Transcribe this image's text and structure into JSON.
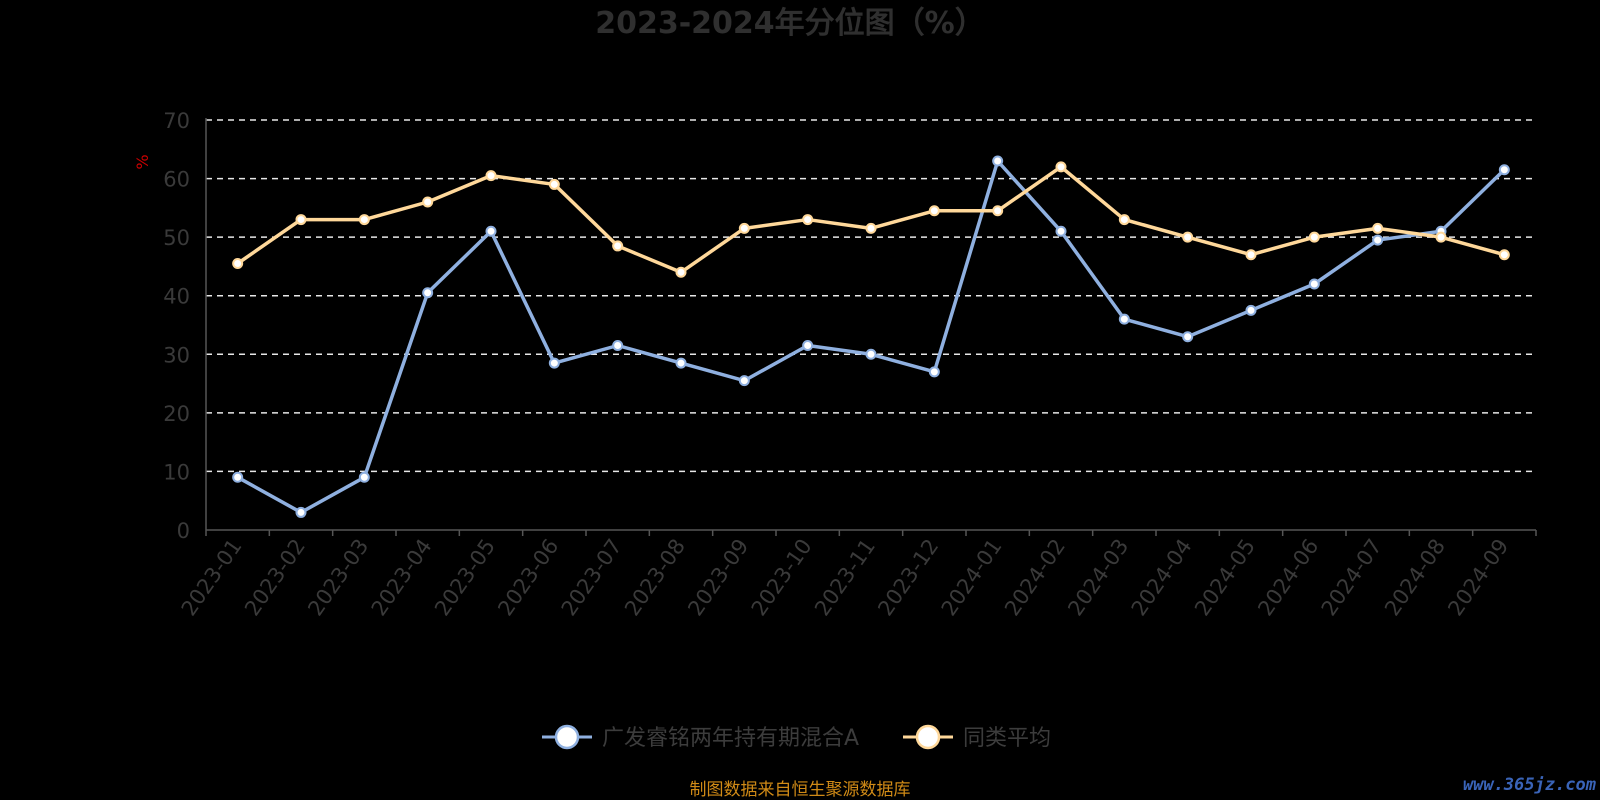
{
  "chart_data": {
    "type": "line",
    "title": "2023-2024年分位图（%）",
    "ylabel": "%",
    "ylim": [
      0,
      70
    ],
    "yticks": [
      0,
      10,
      20,
      30,
      40,
      50,
      60,
      70
    ],
    "grid": true,
    "legend_position": "bottom-center",
    "categories": [
      "2023-01",
      "2023-02",
      "2023-03",
      "2023-04",
      "2023-05",
      "2023-06",
      "2023-07",
      "2023-08",
      "2023-09",
      "2023-10",
      "2023-11",
      "2023-12",
      "2024-01",
      "2024-02",
      "2024-03",
      "2024-04",
      "2024-05",
      "2024-06",
      "2024-07",
      "2024-08",
      "2024-09"
    ],
    "series": [
      {
        "name": "广发睿铭两年持有期混合A",
        "color": "#8fb0e0",
        "values": [
          9,
          3,
          9,
          40.5,
          51,
          28.5,
          31.5,
          28.5,
          25.5,
          31.5,
          30,
          27,
          63,
          51,
          36,
          33,
          37.5,
          42,
          49.5,
          51,
          61.5
        ]
      },
      {
        "name": "同类平均",
        "color": "#ffd89a",
        "values": [
          45.5,
          53,
          53,
          56,
          60.5,
          59,
          48.5,
          44,
          51.5,
          53,
          51.5,
          54.5,
          54.5,
          62,
          53,
          50,
          47,
          50,
          51.5,
          50,
          47
        ]
      }
    ]
  },
  "footer": {
    "source": "制图数据来自恒生聚源数据库",
    "watermark": "www.365jz.com"
  }
}
